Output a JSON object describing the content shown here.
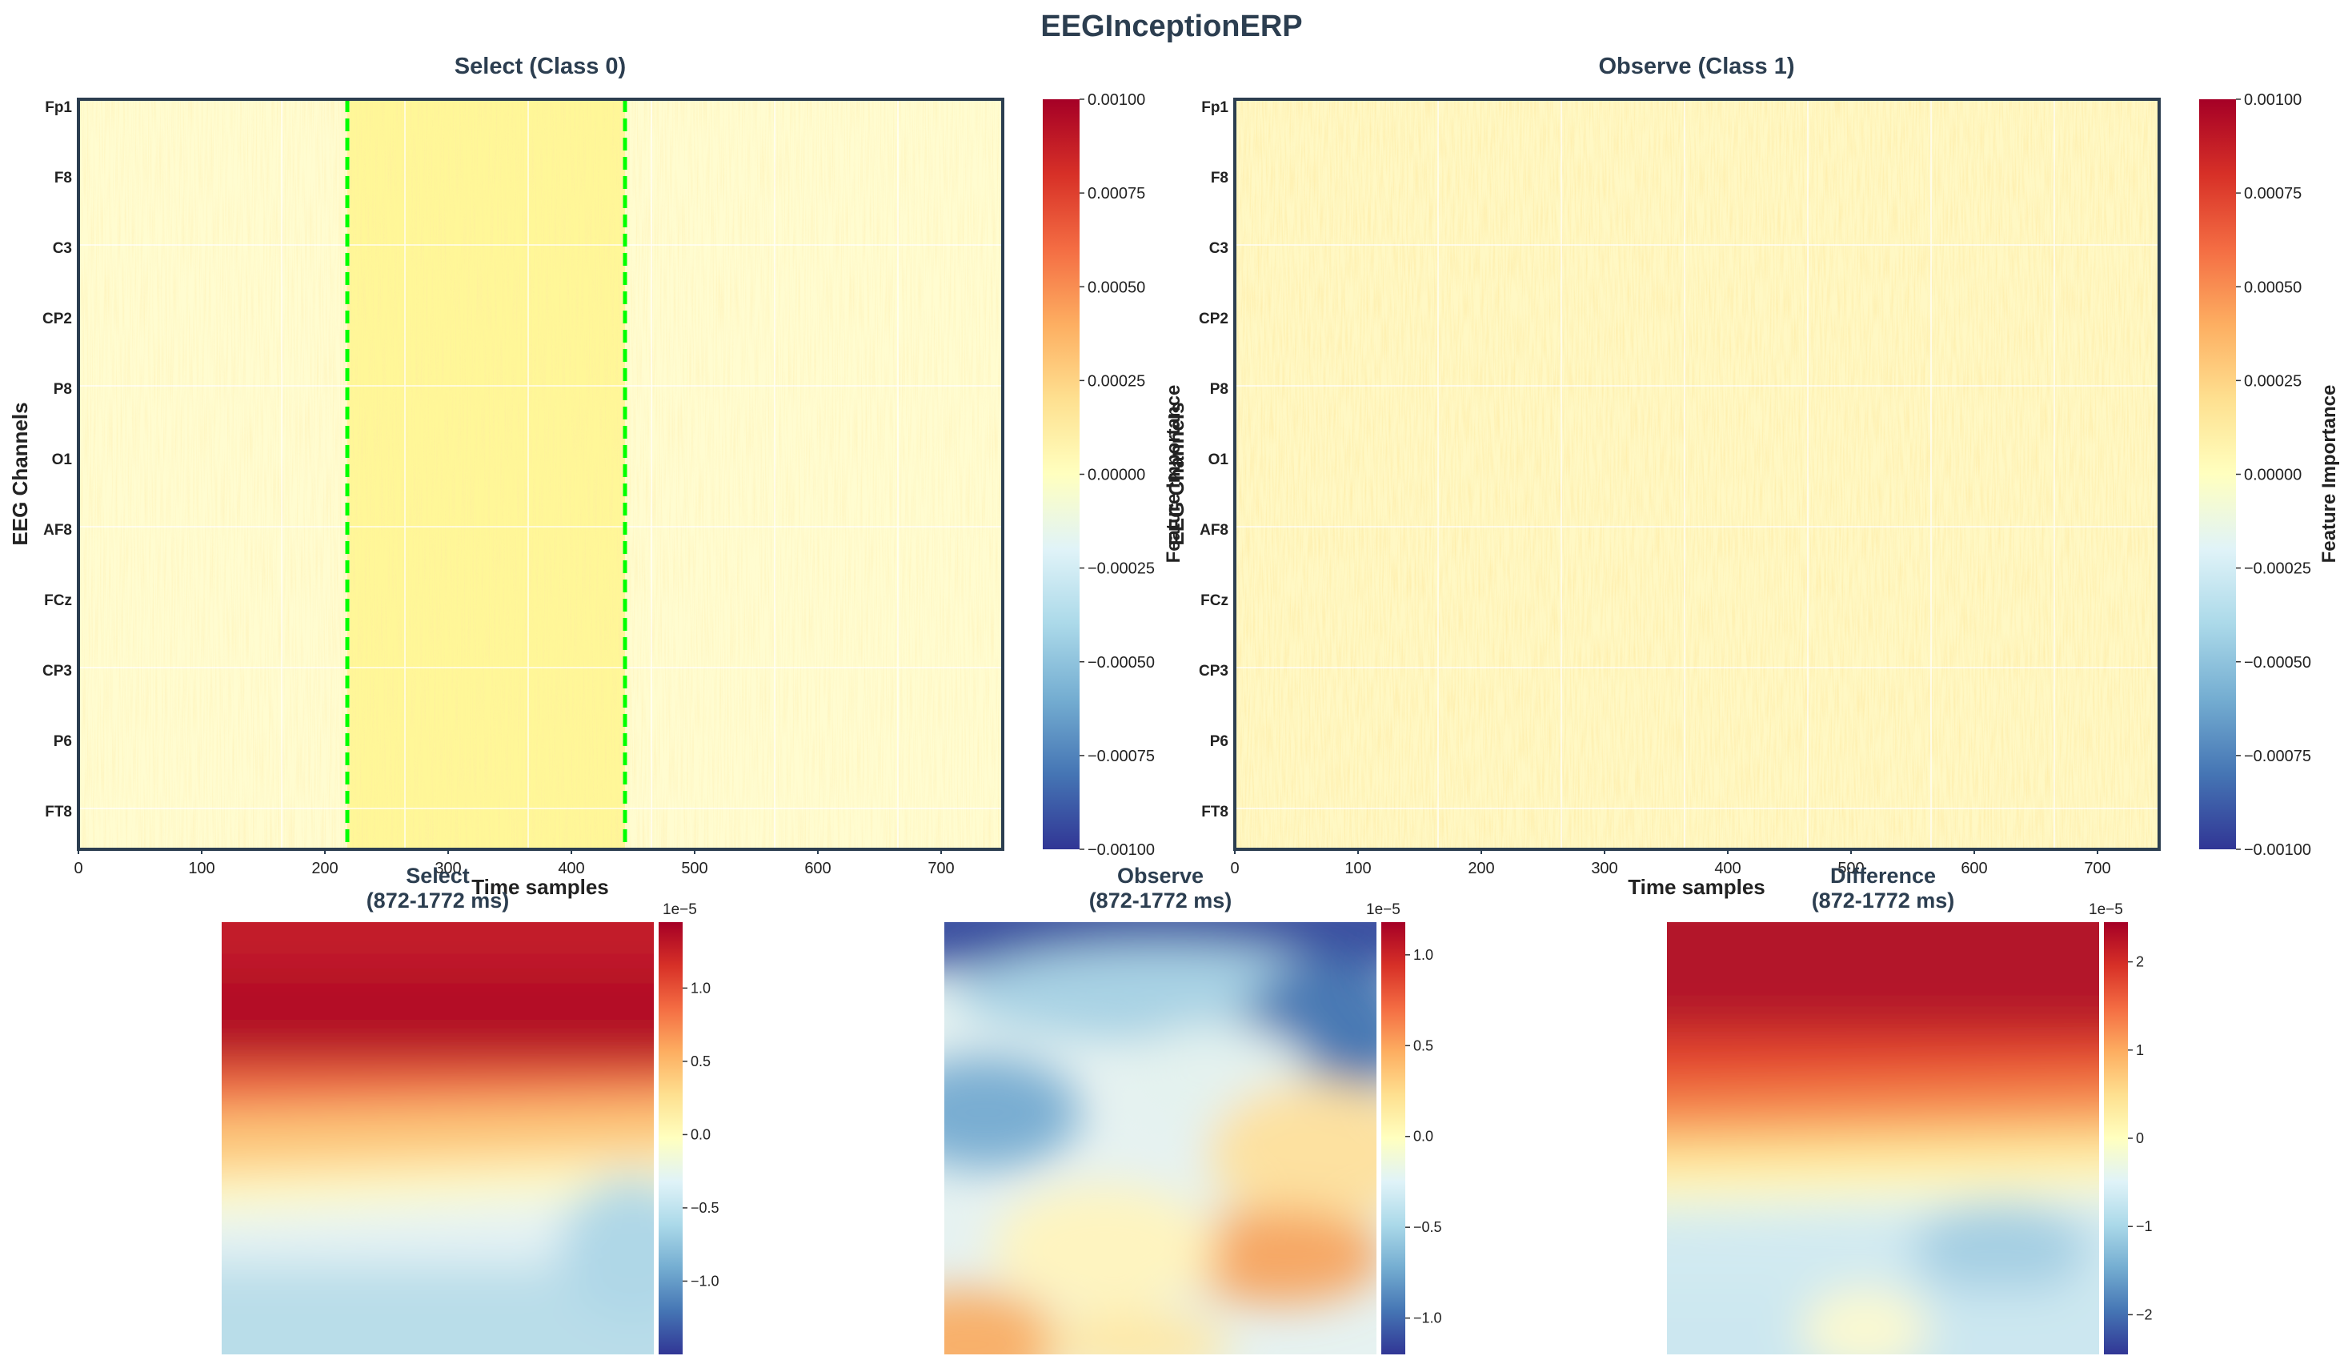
{
  "figure_title": "EEGInceptionERP",
  "colors": {
    "title": "#2c3e50",
    "frame": "#2c3e50",
    "window_line": "#00ff00",
    "cmap": [
      "#313695",
      "#4575b4",
      "#74add1",
      "#abd9e9",
      "#e0f3f8",
      "#ffffbf",
      "#fee090",
      "#fdae61",
      "#f46d43",
      "#d73027",
      "#a50026"
    ]
  },
  "chart_data": [
    {
      "type": "heatmap",
      "panel": "select-class-0",
      "title": "Select (Class 0)",
      "xlabel": "Time samples",
      "ylabel": "EEG Channels",
      "channels": [
        "Fp1",
        "F8",
        "C3",
        "CP2",
        "P8",
        "O1",
        "AF8",
        "FCz",
        "CP3",
        "P6",
        "FT8"
      ],
      "xlim": [
        0,
        750
      ],
      "xticks": [
        0,
        100,
        200,
        300,
        400,
        500,
        600,
        700
      ],
      "xtick_labels": [
        "0",
        "100",
        "200",
        "300",
        "400",
        "500",
        "600",
        "700"
      ],
      "window_start": 218,
      "window_end": 443,
      "vlim": [
        -0.001,
        0.001
      ],
      "colorbar_label": "Feature Importance",
      "colorbar_ticks": [
        "0.00100",
        "0.00075",
        "0.00050",
        "0.00025",
        "0.00000",
        "−0.00025",
        "−0.00050",
        "−0.00075",
        "−0.00100"
      ]
    },
    {
      "type": "heatmap",
      "panel": "observe-class-1",
      "title": "Observe (Class 1)",
      "xlabel": "Time samples",
      "ylabel": "EEG Channels",
      "channels": [
        "Fp1",
        "F8",
        "C3",
        "CP2",
        "P8",
        "O1",
        "AF8",
        "FCz",
        "CP3",
        "P6",
        "FT8"
      ],
      "xlim": [
        0,
        750
      ],
      "xticks": [
        0,
        100,
        200,
        300,
        400,
        500,
        600,
        700
      ],
      "xtick_labels": [
        "0",
        "100",
        "200",
        "300",
        "400",
        "500",
        "600",
        "700"
      ],
      "vlim": [
        -0.001,
        0.001
      ],
      "colorbar_label": "Feature Importance",
      "colorbar_ticks": [
        "0.00100",
        "0.00075",
        "0.00050",
        "0.00025",
        "0.00000",
        "−0.00025",
        "−0.00050",
        "−0.00075",
        "−0.00100"
      ]
    },
    {
      "type": "heatmap",
      "panel": "topomap-select",
      "title": "Select\n(872-1772 ms)",
      "colorbar_exponent": "1e−5",
      "vlim": [
        -1.5,
        1.45
      ],
      "colorbar_ticks": [
        1.0,
        0.5,
        0.0,
        -0.5,
        -1.0
      ],
      "colorbar_tick_labels": [
        "1.0",
        "0.5",
        "0.0",
        "−0.5",
        "−1.0"
      ]
    },
    {
      "type": "heatmap",
      "panel": "topomap-observe",
      "title": "Observe\n(872-1772 ms)",
      "colorbar_exponent": "1e−5",
      "vlim": [
        -1.2,
        1.18
      ],
      "colorbar_ticks": [
        1.0,
        0.5,
        0.0,
        -0.5,
        -1.0
      ],
      "colorbar_tick_labels": [
        "1.0",
        "0.5",
        "0.0",
        "−0.5",
        "−1.0"
      ]
    },
    {
      "type": "heatmap",
      "panel": "topomap-difference",
      "title": "Difference\n(872-1772 ms)",
      "colorbar_exponent": "1e−5",
      "vlim": [
        -2.45,
        2.45
      ],
      "colorbar_ticks": [
        2,
        1,
        0,
        -1,
        -2
      ],
      "colorbar_tick_labels": [
        "2",
        "1",
        "0",
        "−1",
        "−2"
      ]
    }
  ]
}
